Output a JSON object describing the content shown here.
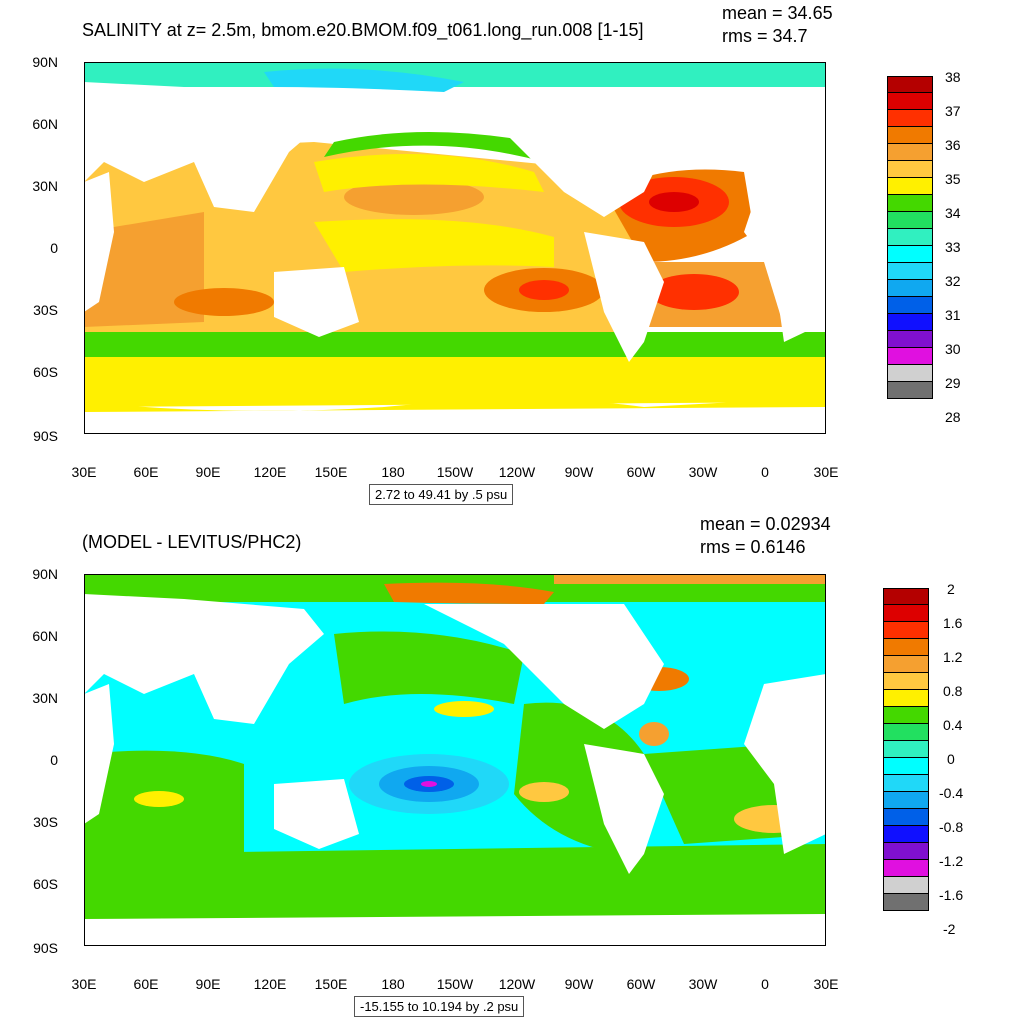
{
  "top": {
    "title": "SALINITY at z=   2.5m, bmom.e20.BMOM.f09_t061.long_run.008 [1-15]",
    "mean": "mean = 34.65",
    "rms": "rms = 34.7",
    "range": "2.72 to 49.41 by .5 psu",
    "colorbar_labels": [
      "38",
      "37",
      "36",
      "35",
      "34",
      "33",
      "32",
      "31",
      "30",
      "29",
      "28"
    ],
    "colorbar_colors": [
      "#b40000",
      "#dd0000",
      "#ff3000",
      "#f07a00",
      "#f5a030",
      "#ffc840",
      "#fff000",
      "#44d800",
      "#22e060",
      "#30f0c0",
      "#00ffff",
      "#20d8f8",
      "#10a8f0",
      "#0060e8",
      "#1010ff",
      "#8010d0",
      "#e010e0",
      "#d0d0d0",
      "#707070"
    ]
  },
  "bottom": {
    "title": "(MODEL - LEVITUS/PHC2)",
    "mean": "mean = 0.02934",
    "rms": "rms = 0.6146",
    "range": "-15.155 to 10.194 by .2 psu",
    "colorbar_labels": [
      "2",
      "1.6",
      "1.2",
      "0.8",
      "0.4",
      "0",
      "-0.4",
      "-0.8",
      "-1.2",
      "-1.6",
      "-2"
    ],
    "colorbar_colors": [
      "#b40000",
      "#dd0000",
      "#ff3000",
      "#f07a00",
      "#f5a030",
      "#ffc840",
      "#fff000",
      "#44d800",
      "#22e060",
      "#30f0c0",
      "#00ffff",
      "#20d8f8",
      "#10a8f0",
      "#0060e8",
      "#1010ff",
      "#8010d0",
      "#e010e0",
      "#d0d0d0",
      "#707070"
    ]
  },
  "axes": {
    "lat_labels": [
      "90N",
      "60N",
      "30N",
      "0",
      "30S",
      "60S",
      "90S"
    ],
    "lon_labels": [
      "30E",
      "60E",
      "90E",
      "120E",
      "150E",
      "180",
      "150W",
      "120W",
      "90W",
      "60W",
      "30W",
      "0",
      "30E"
    ]
  }
}
